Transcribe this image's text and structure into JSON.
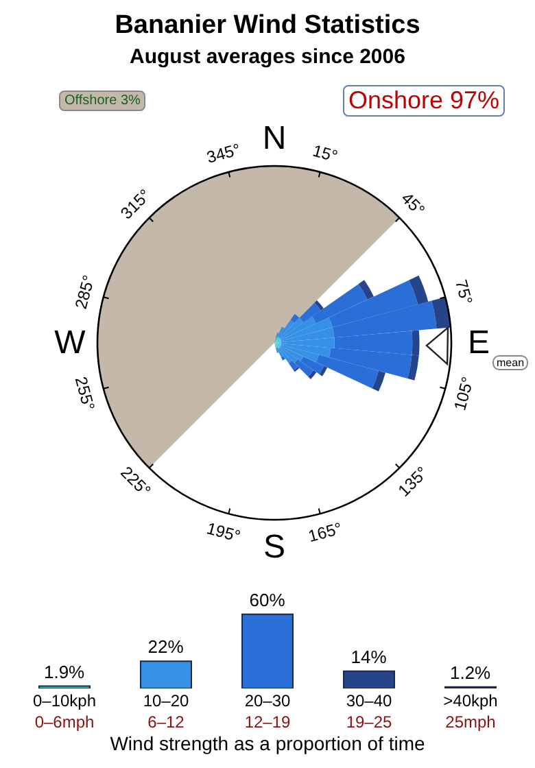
{
  "chart_data": [
    {
      "type": "other",
      "title": "Bananier Wind Statistics",
      "subtitle": "August averages since 2006",
      "annotations": [
        "Offshore 3%",
        "Onshore 97%",
        "N",
        "15°",
        "45°",
        "75°",
        "E",
        "105°",
        "135°",
        "165°",
        "S",
        "195°",
        "225°",
        "255°",
        "W",
        "285°",
        "315°",
        "345°",
        "mean"
      ]
    },
    {
      "type": "bar",
      "tick_labels": "x",
      "xlabel": "Wind strength as a proportion of time",
      "categories": [
        "0–10kph\n0–6mph",
        "10–20\n6–12",
        "20–30\n12–19",
        "30–40\n19–25",
        ">40kph\n25mph"
      ],
      "values": [
        1.9,
        22,
        60,
        14,
        1.2
      ],
      "colors": [
        "#40c0c0",
        "#3590e6",
        "#2a6fd8",
        "#26448a",
        "#222222"
      ],
      "value_labels": [
        "1.9%",
        "22%",
        "60%",
        "14%",
        "1.2%"
      ]
    }
  ]
}
